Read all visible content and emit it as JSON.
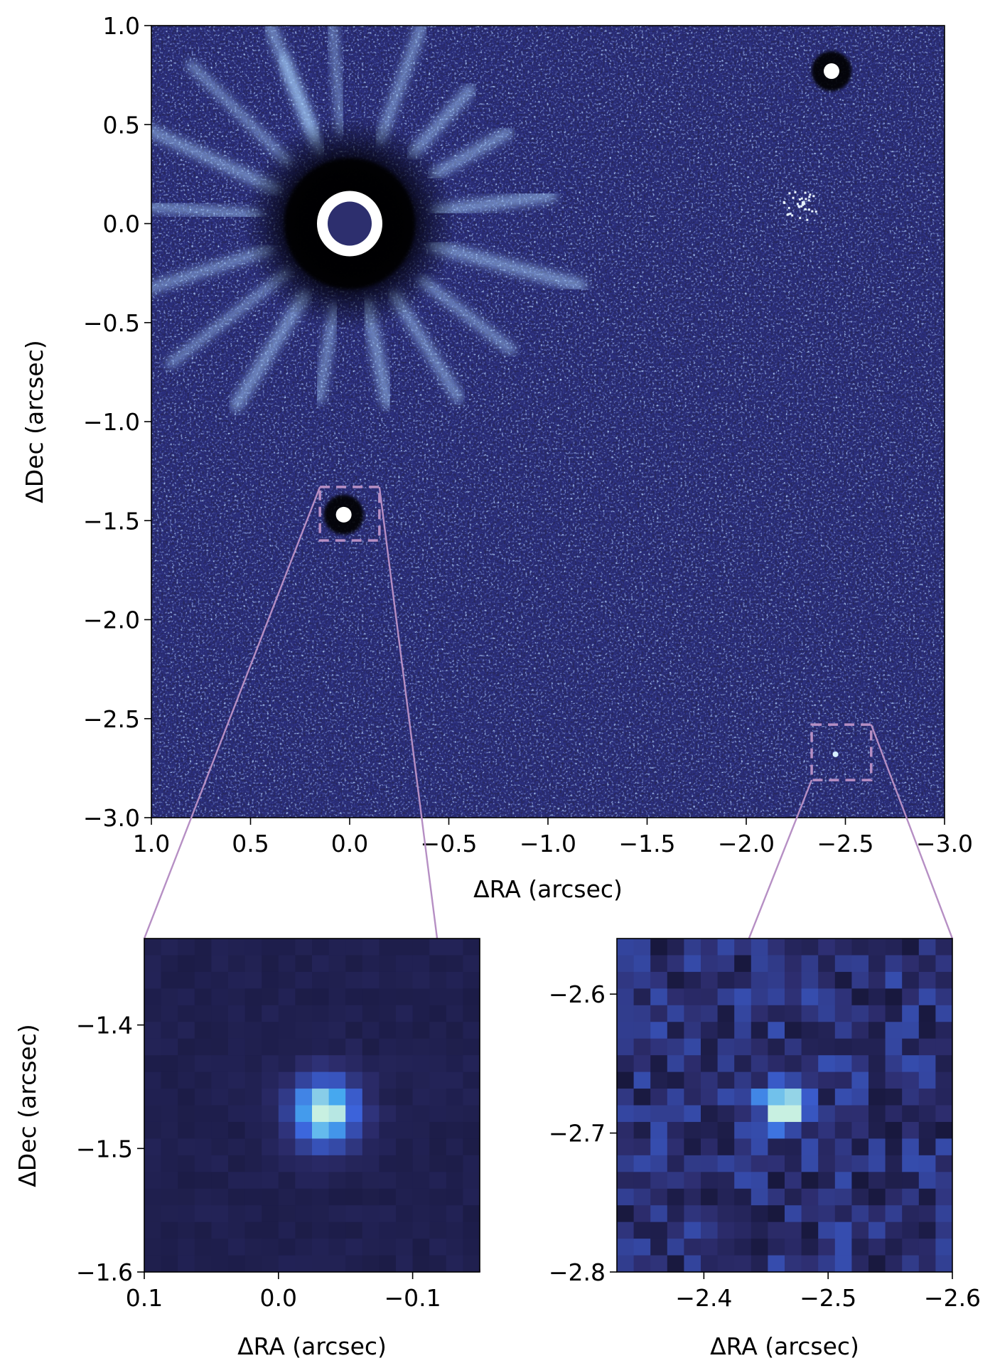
{
  "chart_data": [
    {
      "type": "heatmap",
      "panel": "main",
      "xlabel": "ΔRA (arcsec)",
      "ylabel": "ΔDec (arcsec)",
      "xlim": [
        1.0,
        -3.0
      ],
      "ylim": [
        -3.0,
        1.0
      ],
      "xticks": [
        {
          "value": 1.0,
          "label": "1.0"
        },
        {
          "value": 0.5,
          "label": "0.5"
        },
        {
          "value": 0.0,
          "label": "0.0"
        },
        {
          "value": -0.5,
          "label": "−0.5"
        },
        {
          "value": -1.0,
          "label": "−1.0"
        },
        {
          "value": -1.5,
          "label": "−1.5"
        },
        {
          "value": -2.0,
          "label": "−2.0"
        },
        {
          "value": -2.5,
          "label": "−2.5"
        },
        {
          "value": -3.0,
          "label": "−3.0"
        }
      ],
      "yticks": [
        {
          "value": 1.0,
          "label": "1.0"
        },
        {
          "value": 0.5,
          "label": "0.5"
        },
        {
          "value": 0.0,
          "label": "0.0"
        },
        {
          "value": -0.5,
          "label": "−0.5"
        },
        {
          "value": -1.0,
          "label": "−1.0"
        },
        {
          "value": -1.5,
          "label": "−1.5"
        },
        {
          "value": -2.0,
          "label": "−2.0"
        },
        {
          "value": -2.5,
          "label": "−2.5"
        },
        {
          "value": -3.0,
          "label": "−3.0"
        }
      ],
      "sources": [
        {
          "x": 0.0,
          "y": 0.0,
          "kind": "host-star-masked"
        },
        {
          "x": 0.03,
          "y": -1.47,
          "kind": "companion"
        },
        {
          "x": -2.43,
          "y": 0.77,
          "kind": "bright-source"
        },
        {
          "x": -2.45,
          "y": -2.68,
          "kind": "faint-companion"
        },
        {
          "x": -2.28,
          "y": 0.1,
          "kind": "speckle-cluster"
        }
      ],
      "zoom_boxes": [
        {
          "xlim": [
            0.15,
            -0.15
          ],
          "ylim": [
            -1.6,
            -1.33
          ]
        },
        {
          "xlim": [
            -2.33,
            -2.63
          ],
          "ylim": [
            -2.81,
            -2.53
          ]
        }
      ],
      "colors": {
        "background": "#2b2f7e",
        "noise_dark": "#05051a",
        "source": "#ffffff",
        "box": "#b68fc4"
      }
    },
    {
      "type": "heatmap",
      "panel": "inset-left",
      "xlabel": "ΔRA (arcsec)",
      "ylabel": "ΔDec (arcsec)",
      "xlim": [
        0.1,
        -0.15
      ],
      "ylim": [
        -1.6,
        -1.33
      ],
      "xticks": [
        {
          "value": 0.1,
          "label": "0.1"
        },
        {
          "value": 0.0,
          "label": "0.0"
        },
        {
          "value": -0.1,
          "label": "−0.1"
        }
      ],
      "yticks": [
        {
          "value": -1.4,
          "label": "−1.4"
        },
        {
          "value": -1.5,
          "label": "−1.5"
        },
        {
          "value": -1.6,
          "label": "−1.6"
        }
      ],
      "peak": {
        "x": -0.035,
        "y": -1.47
      }
    },
    {
      "type": "heatmap",
      "panel": "inset-right",
      "xlabel": "ΔRA (arcsec)",
      "ylabel": "",
      "xlim": [
        -2.33,
        -2.6
      ],
      "ylim": [
        -2.8,
        -2.56
      ],
      "xticks": [
        {
          "value": -2.4,
          "label": "−2.4"
        },
        {
          "value": -2.5,
          "label": "−2.5"
        },
        {
          "value": -2.6,
          "label": "−2.6"
        }
      ],
      "yticks": [
        {
          "value": -2.6,
          "label": "−2.6"
        },
        {
          "value": -2.7,
          "label": "−2.7"
        },
        {
          "value": -2.8,
          "label": "−2.8"
        }
      ],
      "peak": {
        "x": -2.465,
        "y": -2.68
      }
    }
  ]
}
